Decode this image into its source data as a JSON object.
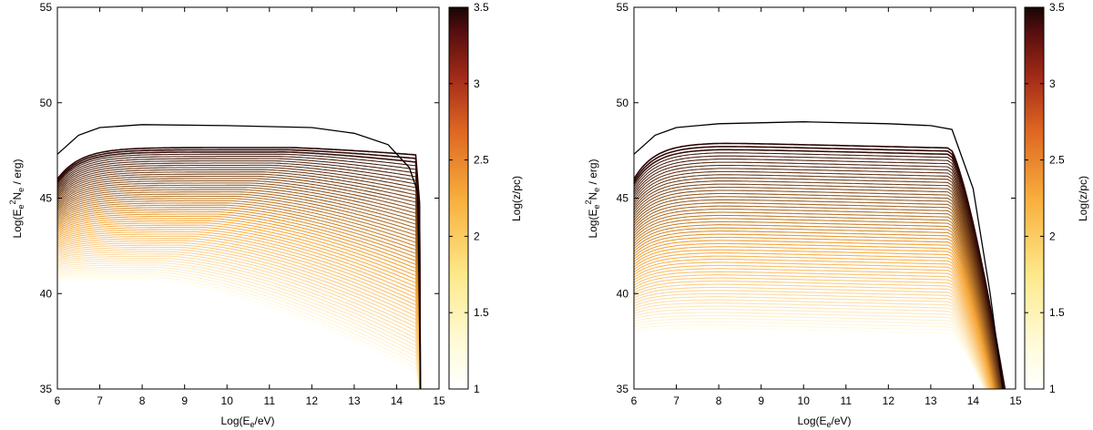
{
  "colors": {
    "line_low": "#fffde8",
    "line_mid": "#f6a535",
    "line_high": "#2a0606",
    "envelope": "#000000",
    "frame": "#000000"
  },
  "chart_data": [
    {
      "type": "line",
      "panel": "left",
      "xlabel_main": "Log(E",
      "xlabel_sub": "e",
      "xlabel_end": "/eV)",
      "ylabel_main": "Log(E",
      "ylabel_sub": "e",
      "ylabel_sup": "2",
      "ylabel_mid": "N",
      "ylabel_sub2": "e",
      "ylabel_end": " / erg)",
      "xlim": [
        6,
        15
      ],
      "ylim": [
        35,
        55
      ],
      "x_ticks": [
        "6",
        "7",
        "8",
        "9",
        "10",
        "11",
        "12",
        "13",
        "14",
        "15"
      ],
      "y_ticks": [
        "35",
        "40",
        "45",
        "50",
        "55"
      ],
      "colorbar": {
        "label": "Log(z/pc)",
        "range": [
          1,
          3.5
        ],
        "ticks": [
          "1",
          "1.5",
          "2",
          "2.5",
          "3",
          "3.5"
        ]
      },
      "family_count": 60,
      "family_logz_range": [
        1.0,
        3.5
      ],
      "family_left_y_range": [
        40.8,
        46.0
      ],
      "family_plateau_y_range": [
        40.8,
        47.65
      ],
      "family_plateau_end_x_range": [
        8.0,
        11.5
      ],
      "family_cutoff_x": 14.56,
      "outer_curve": {
        "x": [
          6.0,
          6.5,
          7.0,
          8.0,
          10.0,
          12.0,
          13.0,
          13.8,
          14.3,
          14.5,
          14.56
        ],
        "y": [
          47.3,
          48.3,
          48.7,
          48.85,
          48.8,
          48.7,
          48.4,
          47.8,
          46.6,
          45.3,
          35.0
        ]
      }
    },
    {
      "type": "line",
      "panel": "right",
      "xlabel_main": "Log(E",
      "xlabel_sub": "e",
      "xlabel_end": "/eV)",
      "ylabel_main": "Log(E",
      "ylabel_sub": "e",
      "ylabel_sup": "2",
      "ylabel_mid": "N",
      "ylabel_sub2": "e",
      "ylabel_end": " / erg)",
      "xlim": [
        6,
        15
      ],
      "ylim": [
        35,
        55
      ],
      "x_ticks": [
        "6",
        "7",
        "8",
        "9",
        "10",
        "11",
        "12",
        "13",
        "14",
        "15"
      ],
      "y_ticks": [
        "35",
        "40",
        "45",
        "50",
        "55"
      ],
      "colorbar": {
        "label": "Log(z/pc)",
        "range": [
          1,
          3.5
        ],
        "ticks": [
          "1",
          "1.5",
          "2",
          "2.5",
          "3",
          "3.5"
        ]
      },
      "family_count": 60,
      "family_logz_range": [
        1.0,
        3.5
      ],
      "family_left_y_range": [
        38.0,
        46.0
      ],
      "family_plateau_y_range": [
        38.2,
        47.9
      ],
      "family_knee_x": 13.45,
      "family_end_x_range": [
        14.25,
        14.75
      ],
      "outer_curve": {
        "x": [
          6.0,
          6.5,
          7.0,
          8.0,
          10.0,
          12.0,
          13.0,
          13.5,
          14.0,
          14.4,
          14.7
        ],
        "y": [
          47.3,
          48.3,
          48.7,
          48.9,
          49.0,
          48.9,
          48.8,
          48.6,
          45.5,
          40.0,
          35.0
        ]
      }
    }
  ]
}
